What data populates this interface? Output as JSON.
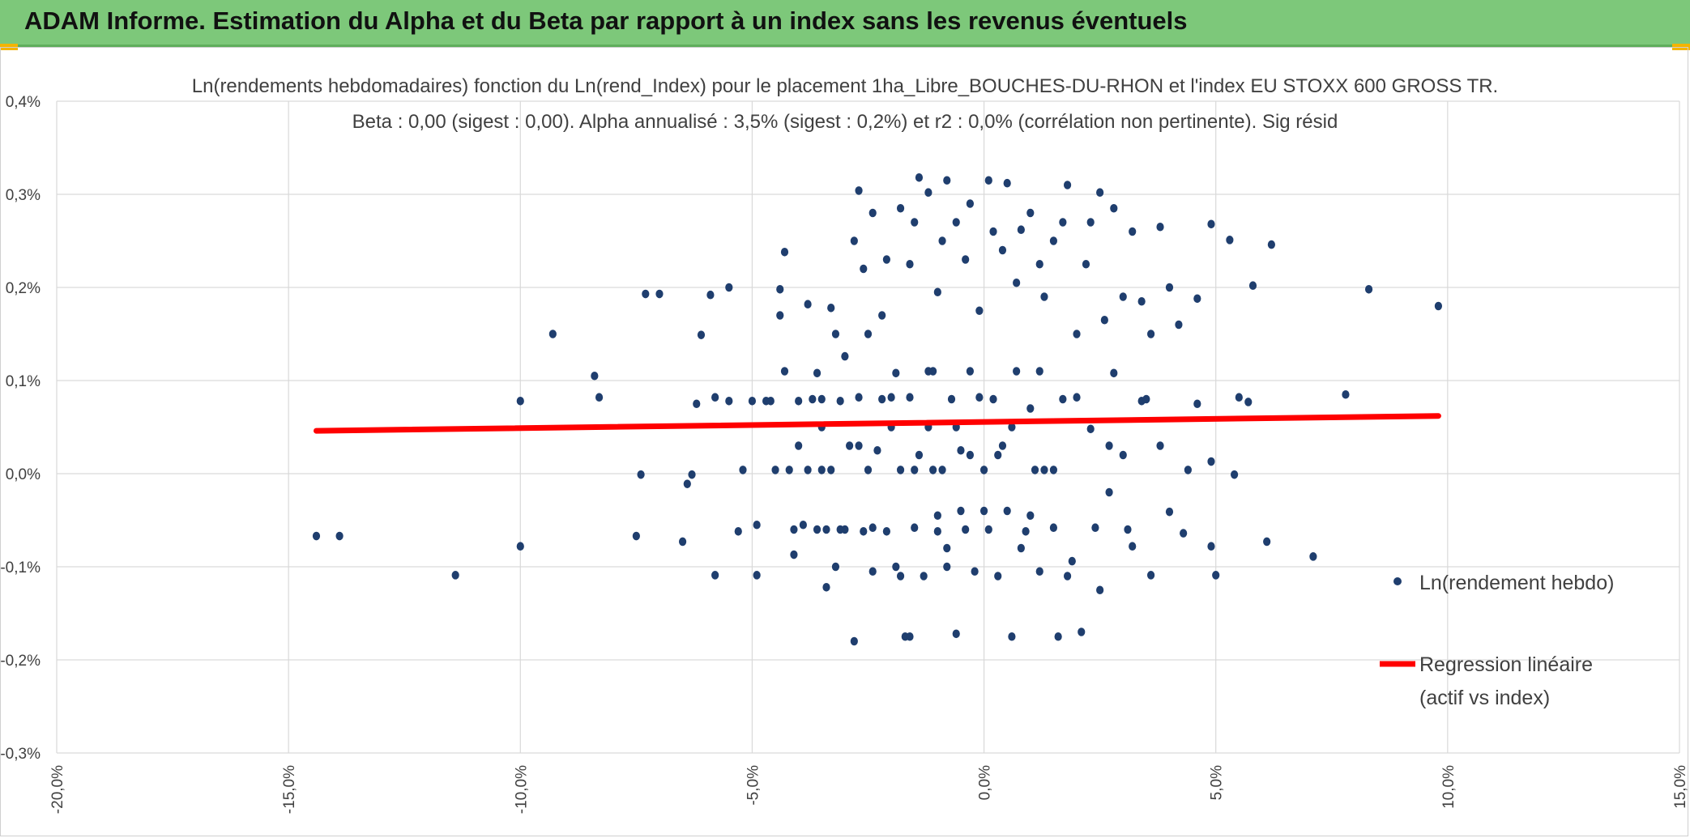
{
  "header": {
    "title": "ADAM Informe. Estimation du Alpha et du Beta par rapport à un index sans les revenus éventuels"
  },
  "colors": {
    "banner": "#7dc87a",
    "points": "#1f3e6e",
    "regression": "#ff0000",
    "grid": "#d9d9d9",
    "accent": "#f4b400"
  },
  "chart_data": {
    "type": "scatter",
    "title_line1": "Ln(rendements hebdomadaires) fonction du Ln(rend_Index) pour le placement 1ha_Libre_BOUCHES-DU-RHON et l'index EU STOXX 600 GROSS TR.",
    "title_line2": "Beta : 0,00 (sigest : 0,00). Alpha annualisé : 3,5% (sigest : 0,2%) et r2 : 0,0% (corrélation non pertinente). Sig résid",
    "xlim": [
      -0.2,
      0.15
    ],
    "ylim": [
      -0.003,
      0.004
    ],
    "x_ticks": [
      "-20,0%",
      "-15,0%",
      "-10,0%",
      "-5,0%",
      "0,0%",
      "5,0%",
      "10,0%",
      "15,0%"
    ],
    "y_ticks": [
      "0,4%",
      "0,3%",
      "0,2%",
      "0,1%",
      "0,0%",
      "-0,1%",
      "-0,2%",
      "-0,3%"
    ],
    "grid": true,
    "legend_position": "right",
    "legend": [
      {
        "label": "Ln(rendement hebdo)",
        "marker": "dot"
      },
      {
        "label_line1": "Regression linéaire",
        "label_line2": "(actif vs index)",
        "marker": "line"
      }
    ],
    "regression": {
      "x": [
        -0.144,
        0.098
      ],
      "y": [
        0.00046,
        0.00062
      ]
    },
    "series": [
      {
        "name": "Ln(rendement hebdo)",
        "points": [
          [
            -0.144,
            -0.00067
          ],
          [
            -0.139,
            -0.00067
          ],
          [
            -0.114,
            -0.00109
          ],
          [
            -0.1,
            -0.00078
          ],
          [
            -0.1,
            0.00078
          ],
          [
            -0.093,
            0.0015
          ],
          [
            -0.084,
            0.00105
          ],
          [
            -0.083,
            0.00082
          ],
          [
            -0.075,
            -0.00067
          ],
          [
            -0.074,
            -1e-05
          ],
          [
            -0.073,
            0.00193
          ],
          [
            -0.07,
            0.00193
          ],
          [
            -0.065,
            -0.00073
          ],
          [
            -0.064,
            -0.00011
          ],
          [
            -0.063,
            -1e-05
          ],
          [
            -0.062,
            0.00075
          ],
          [
            -0.061,
            0.00149
          ],
          [
            -0.059,
            0.00192
          ],
          [
            -0.058,
            0.00082
          ],
          [
            -0.058,
            -0.00109
          ],
          [
            -0.055,
            0.002
          ],
          [
            -0.055,
            0.00078
          ],
          [
            -0.053,
            -0.00062
          ],
          [
            -0.052,
            4e-05
          ],
          [
            -0.05,
            0.00078
          ],
          [
            -0.049,
            -0.00109
          ],
          [
            -0.049,
            -0.00055
          ],
          [
            -0.047,
            0.00078
          ],
          [
            -0.046,
            0.00078
          ],
          [
            -0.045,
            4e-05
          ],
          [
            -0.044,
            0.0017
          ],
          [
            -0.044,
            0.00198
          ],
          [
            -0.043,
            0.00238
          ],
          [
            -0.041,
            -0.00087
          ],
          [
            -0.04,
            0.00078
          ],
          [
            -0.038,
            0.00182
          ],
          [
            -0.036,
            0.00108
          ],
          [
            -0.035,
            4e-05
          ],
          [
            -0.034,
            -0.00122
          ],
          [
            -0.033,
            0.00178
          ],
          [
            -0.032,
            0.0015
          ],
          [
            -0.03,
            0.00126
          ],
          [
            -0.028,
            0.0025
          ],
          [
            -0.027,
            0.00304
          ],
          [
            -0.026,
            0.0022
          ],
          [
            -0.025,
            0.0015
          ],
          [
            -0.024,
            0.0028
          ],
          [
            -0.022,
            0.0017
          ],
          [
            -0.021,
            0.0023
          ],
          [
            -0.019,
            0.00108
          ],
          [
            -0.018,
            0.00285
          ],
          [
            -0.016,
            0.00225
          ],
          [
            -0.015,
            0.0027
          ],
          [
            -0.014,
            0.00318
          ],
          [
            -0.012,
            0.00302
          ],
          [
            -0.01,
            0.00195
          ],
          [
            -0.009,
            0.0025
          ],
          [
            -0.008,
            0.00315
          ],
          [
            -0.006,
            0.0027
          ],
          [
            -0.004,
            0.0023
          ],
          [
            -0.003,
            0.0029
          ],
          [
            -0.001,
            0.00175
          ],
          [
            0.001,
            0.00315
          ],
          [
            0.002,
            0.0026
          ],
          [
            0.004,
            0.0024
          ],
          [
            0.005,
            0.00312
          ],
          [
            0.007,
            0.00205
          ],
          [
            0.008,
            0.00262
          ],
          [
            0.01,
            0.0028
          ],
          [
            0.012,
            0.00225
          ],
          [
            0.013,
            0.0019
          ],
          [
            0.015,
            0.0025
          ],
          [
            0.017,
            0.0027
          ],
          [
            0.018,
            0.0031
          ],
          [
            0.02,
            0.0015
          ],
          [
            0.022,
            0.00225
          ],
          [
            0.023,
            0.0027
          ],
          [
            0.025,
            0.00302
          ],
          [
            0.026,
            0.00165
          ],
          [
            0.028,
            0.00285
          ],
          [
            0.03,
            0.0019
          ],
          [
            0.032,
            0.0026
          ],
          [
            0.034,
            0.00185
          ],
          [
            0.036,
            0.0015
          ],
          [
            0.038,
            0.00265
          ],
          [
            0.04,
            0.002
          ],
          [
            0.042,
            0.0016
          ],
          [
            0.046,
            0.00188
          ],
          [
            0.049,
            0.00268
          ],
          [
            0.053,
            0.00251
          ],
          [
            0.055,
            0.00082
          ],
          [
            0.058,
            0.00202
          ],
          [
            0.062,
            0.00246
          ],
          [
            0.078,
            0.00085
          ],
          [
            0.083,
            0.00198
          ],
          [
            0.098,
            0.0018
          ],
          [
            0.049,
            0.00013
          ],
          [
            0.054,
            -1e-05
          ],
          [
            0.057,
            0.00077
          ],
          [
            0.049,
            -0.00078
          ],
          [
            0.05,
            -0.00109
          ],
          [
            0.061,
            -0.00073
          ],
          [
            0.071,
            -0.00089
          ],
          [
            0.046,
            0.00075
          ],
          [
            0.044,
            4e-05
          ],
          [
            0.043,
            -0.00064
          ],
          [
            0.04,
            -0.00041
          ],
          [
            0.038,
            0.0003
          ],
          [
            0.036,
            -0.00109
          ],
          [
            0.034,
            0.00078
          ],
          [
            0.032,
            -0.00078
          ],
          [
            0.03,
            0.0002
          ],
          [
            0.028,
            0.00108
          ],
          [
            0.027,
            -0.0002
          ],
          [
            0.025,
            -0.00125
          ],
          [
            0.023,
            0.00048
          ],
          [
            0.021,
            -0.0017
          ],
          [
            0.019,
            -0.00094
          ],
          [
            0.017,
            0.0008
          ],
          [
            0.015,
            -0.00058
          ],
          [
            0.013,
            4e-05
          ],
          [
            0.012,
            -0.00105
          ],
          [
            0.01,
            0.0007
          ],
          [
            0.009,
            -0.00062
          ],
          [
            0.007,
            0.0011
          ],
          [
            0.006,
            -0.00175
          ],
          [
            0.004,
            0.0003
          ],
          [
            0.003,
            -0.0011
          ],
          [
            0.002,
            0.0008
          ],
          [
            0.001,
            -0.0006
          ],
          [
            0.0,
            4e-05
          ],
          [
            -0.001,
            0.00082
          ],
          [
            -0.002,
            -0.00105
          ],
          [
            -0.003,
            0.0011
          ],
          [
            -0.004,
            -0.0006
          ],
          [
            -0.005,
            0.00025
          ],
          [
            -0.006,
            -0.00172
          ],
          [
            -0.007,
            0.0008
          ],
          [
            -0.008,
            -0.001
          ],
          [
            -0.009,
            4e-05
          ],
          [
            -0.01,
            -0.00062
          ],
          [
            -0.011,
            0.0011
          ],
          [
            -0.012,
            0.0005
          ],
          [
            -0.013,
            -0.0011
          ],
          [
            -0.014,
            0.0002
          ],
          [
            -0.015,
            -0.00058
          ],
          [
            -0.016,
            0.00082
          ],
          [
            -0.017,
            -0.00175
          ],
          [
            -0.018,
            4e-05
          ],
          [
            -0.019,
            -0.001
          ],
          [
            -0.02,
            0.0005
          ],
          [
            -0.021,
            -0.00062
          ],
          [
            -0.022,
            0.0008
          ],
          [
            -0.023,
            0.00025
          ],
          [
            -0.024,
            -0.00105
          ],
          [
            -0.025,
            4e-05
          ],
          [
            -0.026,
            -0.00062
          ],
          [
            -0.027,
            0.00082
          ],
          [
            -0.028,
            -0.0018
          ],
          [
            -0.029,
            0.0003
          ],
          [
            -0.03,
            -0.0006
          ],
          [
            -0.031,
            0.00078
          ],
          [
            -0.032,
            -0.001
          ],
          [
            -0.033,
            4e-05
          ],
          [
            -0.034,
            -0.0006
          ],
          [
            -0.035,
            0.0005
          ],
          [
            -0.036,
            -0.0006
          ],
          [
            -0.037,
            0.0008
          ],
          [
            -0.038,
            4e-05
          ],
          [
            -0.039,
            -0.00055
          ],
          [
            -0.04,
            0.0003
          ],
          [
            -0.041,
            -0.0006
          ],
          [
            -0.042,
            4e-05
          ],
          [
            -0.043,
            0.0011
          ],
          [
            0.0,
            -0.0004
          ],
          [
            0.005,
            -0.0004
          ],
          [
            -0.005,
            -0.0004
          ],
          [
            0.01,
            -0.00045
          ],
          [
            -0.01,
            -0.00045
          ],
          [
            0.015,
            4e-05
          ],
          [
            -0.015,
            4e-05
          ],
          [
            0.02,
            0.00082
          ],
          [
            -0.02,
            0.00082
          ],
          [
            0.024,
            -0.00058
          ],
          [
            -0.024,
            -0.00058
          ],
          [
            0.018,
            -0.0011
          ],
          [
            -0.018,
            -0.0011
          ],
          [
            0.012,
            0.0011
          ],
          [
            -0.012,
            0.0011
          ],
          [
            0.006,
            0.0005
          ],
          [
            -0.006,
            0.0005
          ],
          [
            0.003,
            0.0002
          ],
          [
            -0.003,
            0.0002
          ],
          [
            0.008,
            -0.0008
          ],
          [
            -0.008,
            -0.0008
          ],
          [
            0.016,
            -0.00175
          ],
          [
            -0.016,
            -0.00175
          ],
          [
            0.011,
            4e-05
          ],
          [
            -0.011,
            4e-05
          ],
          [
            0.027,
            0.0003
          ],
          [
            -0.027,
            0.0003
          ],
          [
            0.031,
            -0.0006
          ],
          [
            -0.031,
            -0.0006
          ],
          [
            0.035,
            0.0008
          ],
          [
            -0.035,
            0.0008
          ]
        ]
      }
    ]
  }
}
